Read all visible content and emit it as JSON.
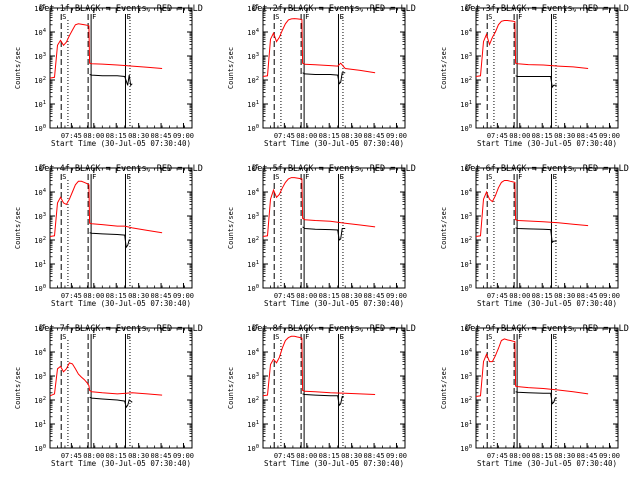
{
  "chart_data": [
    {
      "type": "line",
      "title": "Det 1f BLACK = Events, RED = LLD",
      "ylabel": "Counts/sec",
      "xlabel": "Start Time (30-Jul-05 07:30:40)",
      "xticks": [
        "07:45",
        "08:00",
        "08:15",
        "08:30",
        "08:45",
        "09:00"
      ],
      "yticks": [
        "10^0",
        "10^1",
        "10^2",
        "10^3",
        "10^4",
        "10^5"
      ],
      "ylog": true,
      "ylim": [
        1,
        100000
      ],
      "xlim_min": [
        0,
        95
      ],
      "markers": {
        "dashed": [
          7.5,
          25.5
        ],
        "dotted": [
          12
        ],
        "solid": [
          27.5,
          50.5
        ],
        "dotted_end": [
          53.5
        ],
        "labels": [
          "S",
          "F",
          "E"
        ]
      },
      "series": [
        {
          "color": "#ff0000",
          "x": [
            0,
            3,
            5,
            7,
            9,
            11,
            13,
            15,
            17,
            19,
            21,
            23,
            25,
            26,
            26.5,
            28,
            35,
            45,
            55,
            65,
            75
          ],
          "y": [
            120,
            130,
            2800,
            4500,
            2800,
            3800,
            7000,
            12000,
            20000,
            22000,
            21000,
            20000,
            19000,
            18000,
            500,
            480,
            460,
            420,
            380,
            340,
            300
          ]
        },
        {
          "color": "#000000",
          "x": [
            26.5,
            28,
            35,
            45,
            50,
            52,
            53,
            54,
            55
          ],
          "y": [
            170,
            160,
            150,
            150,
            140,
            60,
            160,
            60,
            70
          ]
        }
      ]
    },
    {
      "type": "line",
      "title": "Det 2f BLACK = Events, RED = LLD",
      "ylabel": "Counts/sec",
      "xlabel": "Start Time (30-Jul-05 07:30:40)",
      "xticks": [
        "07:45",
        "08:00",
        "08:15",
        "08:30",
        "08:45",
        "09:00"
      ],
      "yticks": [
        "10^0",
        "10^1",
        "10^2",
        "10^3",
        "10^4",
        "10^5"
      ],
      "ylog": true,
      "ylim": [
        1,
        100000
      ],
      "xlim_min": [
        0,
        95
      ],
      "markers": {
        "dashed": [
          7.5,
          25.5
        ],
        "dotted": [
          12
        ],
        "solid": [
          27.5,
          50.5
        ],
        "dotted_end": [
          53.5
        ],
        "labels": [
          "S",
          "F",
          "E"
        ]
      },
      "series": [
        {
          "color": "#ff0000",
          "x": [
            0,
            3,
            5,
            7,
            9,
            11,
            13,
            15,
            17,
            19,
            21,
            23,
            25,
            26,
            26.5,
            28,
            35,
            45,
            50,
            52,
            55,
            65,
            75
          ],
          "y": [
            140,
            150,
            5000,
            9000,
            4000,
            6000,
            12000,
            22000,
            32000,
            35000,
            36000,
            35000,
            34000,
            33000,
            500,
            450,
            430,
            400,
            380,
            500,
            300,
            250,
            200
          ]
        },
        {
          "color": "#000000",
          "x": [
            26.5,
            28,
            35,
            45,
            50,
            51,
            52,
            53,
            54,
            55
          ],
          "y": [
            200,
            180,
            170,
            170,
            160,
            70,
            80,
            200,
            200,
            200
          ]
        }
      ]
    },
    {
      "type": "line",
      "title": "Det 3f BLACK = Events, RED = LLD",
      "ylabel": "Counts/sec",
      "xlabel": "Start Time (30-Jul-05 07:30:40)",
      "xticks": [
        "07:45",
        "08:00",
        "08:15",
        "08:30",
        "08:45",
        "09:00"
      ],
      "yticks": [
        "10^0",
        "10^1",
        "10^2",
        "10^3",
        "10^4",
        "10^5"
      ],
      "ylog": true,
      "ylim": [
        1,
        100000
      ],
      "xlim_min": [
        0,
        95
      ],
      "markers": {
        "dashed": [
          7.5,
          25.5
        ],
        "dotted": [
          12
        ],
        "solid": [
          27.5,
          50.5
        ],
        "dotted_end": [
          53.5
        ],
        "labels": [
          "S",
          "F",
          "E"
        ]
      },
      "series": [
        {
          "color": "#ff0000",
          "x": [
            0,
            3,
            5,
            7,
            9,
            11,
            13,
            15,
            17,
            19,
            21,
            23,
            25,
            26,
            26.5,
            28,
            35,
            45,
            55,
            65,
            75
          ],
          "y": [
            140,
            150,
            4000,
            8000,
            3000,
            6000,
            10000,
            20000,
            28000,
            30000,
            30000,
            29000,
            28000,
            27000,
            500,
            480,
            440,
            420,
            380,
            350,
            300
          ]
        },
        {
          "color": "#000000",
          "x": [
            26.5,
            28,
            35,
            45,
            50,
            51,
            52,
            53,
            54
          ],
          "y": [
            150,
            140,
            140,
            140,
            140,
            50,
            60,
            60,
            60
          ]
        }
      ]
    },
    {
      "type": "line",
      "title": "Det 4f BLACK = Events, RED = LLD",
      "ylabel": "Counts/sec",
      "xlabel": "Start Time (30-Jul-05 07:30:40)",
      "xticks": [
        "07:45",
        "08:00",
        "08:15",
        "08:30",
        "08:45",
        "09:00"
      ],
      "yticks": [
        "10^0",
        "10^1",
        "10^2",
        "10^3",
        "10^4",
        "10^5"
      ],
      "ylog": true,
      "ylim": [
        1,
        100000
      ],
      "xlim_min": [
        0,
        95
      ],
      "markers": {
        "dashed": [
          7.5,
          25.5
        ],
        "dotted": [
          12
        ],
        "solid": [
          27.5,
          50.5
        ],
        "dotted_end": [
          53.5
        ],
        "labels": [
          "S",
          "F",
          "E"
        ]
      },
      "series": [
        {
          "color": "#ff0000",
          "x": [
            0,
            3,
            5,
            7,
            9,
            11,
            13,
            15,
            17,
            19,
            21,
            23,
            25,
            26,
            26.5,
            28,
            35,
            45,
            50,
            55,
            65,
            75
          ],
          "y": [
            140,
            150,
            3500,
            6000,
            3500,
            3000,
            5000,
            10000,
            20000,
            28000,
            28000,
            25000,
            22000,
            20000,
            500,
            480,
            440,
            380,
            380,
            320,
            250,
            200
          ]
        },
        {
          "color": "#000000",
          "x": [
            26.5,
            28,
            35,
            45,
            50,
            51,
            52,
            53,
            54
          ],
          "y": [
            200,
            190,
            180,
            170,
            160,
            50,
            60,
            100,
            100
          ]
        }
      ]
    },
    {
      "type": "line",
      "title": "Det 5f BLACK = Events, RED = LLD",
      "ylabel": "Counts/sec",
      "xlabel": "Start Time (30-Jul-05 07:30:40)",
      "xticks": [
        "07:45",
        "08:00",
        "08:15",
        "08:30",
        "08:45",
        "09:00"
      ],
      "yticks": [
        "10^0",
        "10^1",
        "10^2",
        "10^3",
        "10^4",
        "10^5"
      ],
      "ylog": true,
      "ylim": [
        1,
        100000
      ],
      "xlim_min": [
        0,
        95
      ],
      "markers": {
        "dashed": [
          7.5,
          25.5
        ],
        "dotted": [
          12
        ],
        "solid": [
          27.5,
          50.5
        ],
        "dotted_end": [
          53.5
        ],
        "labels": [
          "S",
          "F",
          "E"
        ]
      },
      "series": [
        {
          "color": "#ff0000",
          "x": [
            0,
            3,
            5,
            7,
            9,
            11,
            13,
            15,
            17,
            19,
            21,
            23,
            25,
            26,
            26.5,
            28,
            35,
            45,
            55,
            65,
            75
          ],
          "y": [
            140,
            150,
            5000,
            12000,
            6000,
            8000,
            15000,
            25000,
            35000,
            40000,
            40000,
            38000,
            36000,
            35000,
            800,
            700,
            650,
            600,
            500,
            420,
            350
          ]
        },
        {
          "color": "#000000",
          "x": [
            26.5,
            28,
            35,
            45,
            50,
            51,
            52,
            53,
            54,
            55
          ],
          "y": [
            350,
            300,
            280,
            270,
            260,
            100,
            110,
            300,
            300,
            300
          ]
        }
      ]
    },
    {
      "type": "line",
      "title": "Det 6f BLACK = Events, RED = LLD",
      "ylabel": "Counts/sec",
      "xlabel": "Start Time (30-Jul-05 07:30:40)",
      "xticks": [
        "07:45",
        "08:00",
        "08:15",
        "08:30",
        "08:45",
        "09:00"
      ],
      "yticks": [
        "10^0",
        "10^1",
        "10^2",
        "10^3",
        "10^4",
        "10^5"
      ],
      "ylog": true,
      "ylim": [
        1,
        100000
      ],
      "xlim_min": [
        0,
        95
      ],
      "markers": {
        "dashed": [
          7.5,
          25.5
        ],
        "dotted": [
          12
        ],
        "solid": [
          27.5,
          50.5
        ],
        "dotted_end": [
          53.5
        ],
        "labels": [
          "S",
          "F",
          "E"
        ]
      },
      "series": [
        {
          "color": "#ff0000",
          "x": [
            0,
            3,
            5,
            7,
            9,
            11,
            13,
            15,
            17,
            19,
            21,
            23,
            25,
            26,
            26.5,
            28,
            35,
            45,
            55,
            65,
            75
          ],
          "y": [
            140,
            150,
            5000,
            10000,
            5000,
            4000,
            7000,
            15000,
            25000,
            30000,
            30000,
            28000,
            26000,
            25000,
            700,
            650,
            620,
            580,
            520,
            450,
            400
          ]
        },
        {
          "color": "#000000",
          "x": [
            26.5,
            28,
            35,
            45,
            50,
            51,
            52,
            53,
            54
          ],
          "y": [
            320,
            300,
            290,
            280,
            270,
            80,
            90,
            90,
            90
          ]
        }
      ]
    },
    {
      "type": "line",
      "title": "Det 7f BLACK = Events, RED = LLD",
      "ylabel": "Counts/sec",
      "xlabel": "Start Time (30-Jul-05 07:30:40)",
      "xticks": [
        "07:45",
        "08:00",
        "08:15",
        "08:30",
        "08:45",
        "09:00"
      ],
      "yticks": [
        "10^0",
        "10^1",
        "10^2",
        "10^3",
        "10^4",
        "10^5"
      ],
      "ylog": true,
      "ylim": [
        1,
        100000
      ],
      "xlim_min": [
        0,
        95
      ],
      "markers": {
        "dashed": [
          7.5,
          25.5
        ],
        "dotted": [
          12
        ],
        "solid": [
          27.5,
          50.5
        ],
        "dotted_end": [
          53.5
        ],
        "labels": [
          "S",
          "F",
          "E"
        ]
      },
      "series": [
        {
          "color": "#ff0000",
          "x": [
            0,
            3,
            5,
            7,
            9,
            11,
            13,
            15,
            17,
            19,
            21,
            23,
            25,
            26,
            26.5,
            28,
            35,
            45,
            55,
            65,
            75
          ],
          "y": [
            150,
            180,
            2000,
            2500,
            1500,
            2000,
            3500,
            3200,
            2000,
            1200,
            900,
            700,
            500,
            400,
            250,
            220,
            200,
            180,
            200,
            180,
            160
          ]
        },
        {
          "color": "#000000",
          "x": [
            26.5,
            28,
            35,
            45,
            50,
            51,
            52,
            53,
            54,
            55
          ],
          "y": [
            130,
            120,
            110,
            100,
            90,
            50,
            60,
            100,
            90,
            80
          ]
        }
      ]
    },
    {
      "type": "line",
      "title": "Det 8f BLACK = Events, RED = LLD",
      "ylabel": "Counts/sec",
      "xlabel": "Start Time (30-Jul-05 07:30:40)",
      "xticks": [
        "07:45",
        "08:00",
        "08:15",
        "08:30",
        "08:45",
        "09:00"
      ],
      "yticks": [
        "10^0",
        "10^1",
        "10^2",
        "10^3",
        "10^4",
        "10^5"
      ],
      "ylog": true,
      "ylim": [
        1,
        100000
      ],
      "xlim_min": [
        0,
        95
      ],
      "markers": {
        "dashed": [
          7.5,
          25.5
        ],
        "dotted": [
          12
        ],
        "solid": [
          27.5,
          50.5
        ],
        "dotted_end": [
          53.5
        ],
        "labels": [
          "S",
          "F",
          "E"
        ]
      },
      "series": [
        {
          "color": "#ff0000",
          "x": [
            0,
            3,
            5,
            7,
            9,
            11,
            13,
            15,
            17,
            19,
            21,
            23,
            25,
            26,
            26.5,
            28,
            35,
            45,
            55,
            65,
            75
          ],
          "y": [
            150,
            160,
            3000,
            5000,
            3500,
            6000,
            15000,
            30000,
            40000,
            45000,
            45000,
            42000,
            40000,
            38000,
            250,
            230,
            220,
            200,
            190,
            180,
            170
          ]
        },
        {
          "color": "#000000",
          "x": [
            26.5,
            28,
            35,
            45,
            50,
            51,
            52,
            53,
            54
          ],
          "y": [
            180,
            170,
            160,
            150,
            150,
            60,
            70,
            140,
            140
          ]
        }
      ]
    },
    {
      "type": "line",
      "title": "Det 9f BLACK = Events, RED = LLD",
      "ylabel": "Counts/sec",
      "xlabel": "Start Time (30-Jul-05 07:30:40)",
      "xticks": [
        "07:45",
        "08:00",
        "08:15",
        "08:30",
        "08:45",
        "09:00"
      ],
      "yticks": [
        "10^0",
        "10^1",
        "10^2",
        "10^3",
        "10^4",
        "10^5"
      ],
      "ylog": true,
      "ylim": [
        1,
        100000
      ],
      "xlim_min": [
        0,
        95
      ],
      "markers": {
        "dashed": [
          7.5,
          25.5
        ],
        "dotted": [
          12
        ],
        "solid": [
          27.5,
          50.5
        ],
        "dotted_end": [
          53.5
        ],
        "labels": [
          "S",
          "F",
          "E"
        ]
      },
      "series": [
        {
          "color": "#ff0000",
          "x": [
            0,
            3,
            5,
            7,
            9,
            11,
            13,
            15,
            17,
            19,
            21,
            23,
            25,
            26,
            26.5,
            28,
            35,
            45,
            55,
            65,
            75
          ],
          "y": [
            140,
            150,
            4000,
            8000,
            4000,
            4000,
            7000,
            14000,
            30000,
            35000,
            32000,
            30000,
            28000,
            27000,
            380,
            360,
            330,
            300,
            260,
            220,
            180
          ]
        },
        {
          "color": "#000000",
          "x": [
            26.5,
            28,
            35,
            45,
            50,
            51,
            52,
            53,
            54
          ],
          "y": [
            220,
            210,
            200,
            190,
            190,
            70,
            80,
            120,
            120
          ]
        }
      ]
    }
  ]
}
